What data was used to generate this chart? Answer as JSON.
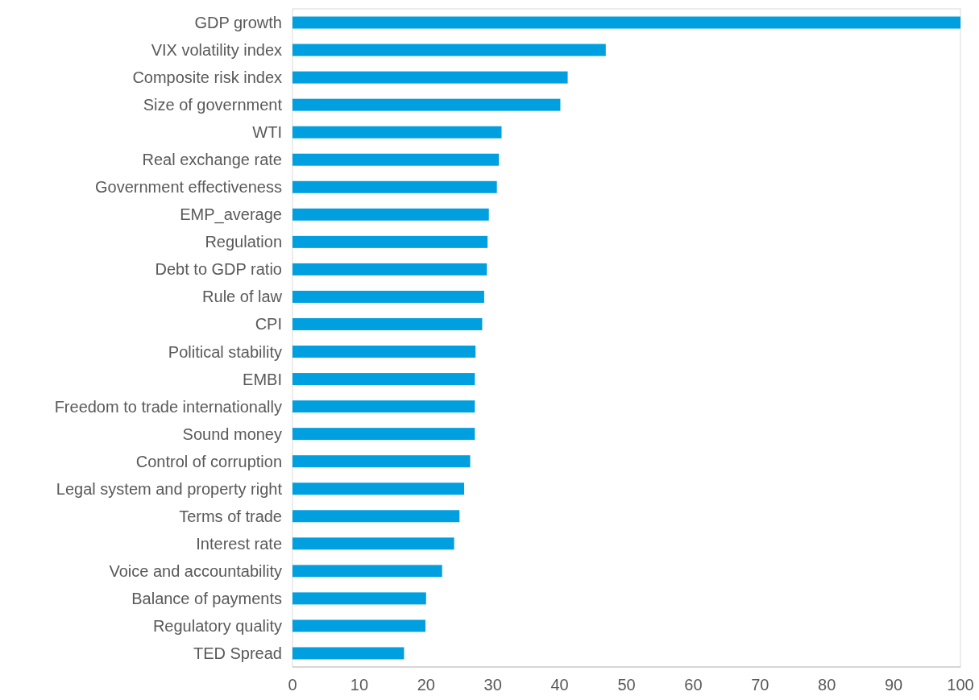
{
  "chart_data": {
    "type": "bar",
    "orientation": "horizontal",
    "categories": [
      "GDP growth",
      "VIX volatility index",
      "Composite risk index",
      "Size of government",
      "WTI",
      "Real exchange rate",
      "Government effectiveness",
      "EMP_average",
      "Regulation",
      "Debt to GDP ratio",
      "Rule of law",
      "CPI",
      "Political stability",
      "EMBI",
      "Freedom to trade internationally",
      "Sound money",
      "Control of corruption",
      "Legal system and property right",
      "Terms of trade",
      "Interest rate",
      "Voice and accountability",
      "Balance of payments",
      "Regulatory quality",
      "TED Spread"
    ],
    "values": [
      100,
      46.9,
      41.2,
      40.1,
      31.3,
      30.9,
      30.6,
      29.4,
      29.2,
      29.1,
      28.7,
      28.4,
      27.4,
      27.3,
      27.3,
      27.3,
      26.6,
      25.7,
      25.0,
      24.2,
      22.4,
      20.0,
      19.9,
      16.7
    ],
    "color": "#009fe0",
    "xlim": [
      0,
      100
    ],
    "xticks": [
      0,
      10,
      20,
      30,
      40,
      50,
      60,
      70,
      80,
      90,
      100
    ],
    "grid": false
  }
}
